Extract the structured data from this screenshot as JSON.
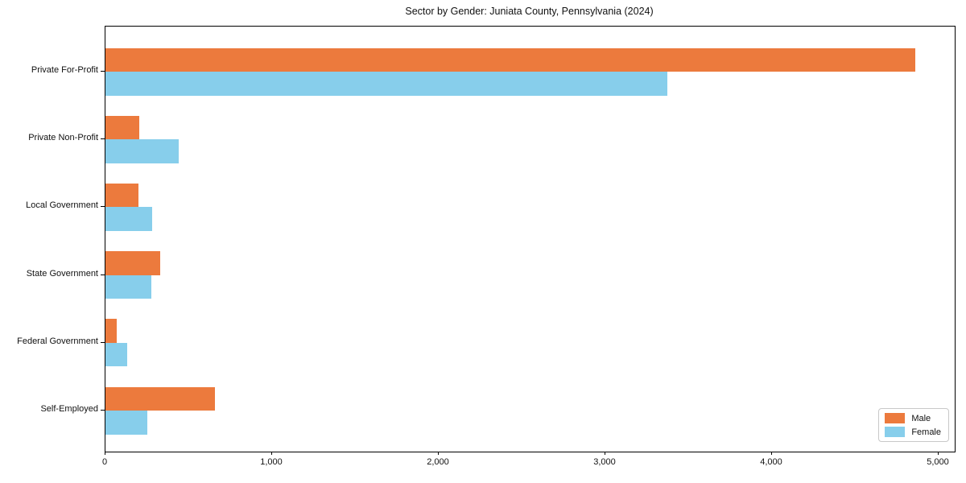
{
  "title": "Sector by Gender: Juniata County, Pennsylvania (2024)",
  "chart_data": {
    "type": "bar",
    "orientation": "horizontal",
    "title": "Sector by Gender: Juniata County, Pennsylvania (2024)",
    "xlabel": "",
    "ylabel": "",
    "categories": [
      "Private For-Profit",
      "Private Non-Profit",
      "Local Government",
      "State Government",
      "Federal Government",
      "Self-Employed"
    ],
    "series": [
      {
        "name": "Male",
        "color": "#ec7a3d",
        "values": [
          4860,
          205,
          200,
          330,
          70,
          655
        ]
      },
      {
        "name": "Female",
        "color": "#87ceeb",
        "values": [
          3370,
          440,
          280,
          275,
          130,
          250
        ]
      }
    ],
    "xlim": [
      0,
      5090
    ],
    "xticks": [
      0,
      1000,
      2000,
      3000,
      4000,
      5000
    ],
    "xtick_labels": [
      "0",
      "1,000",
      "2,000",
      "3,000",
      "4,000",
      "5,000"
    ],
    "grid": false,
    "legend_position": "lower right",
    "legend_labels": [
      "Male",
      "Female"
    ]
  }
}
